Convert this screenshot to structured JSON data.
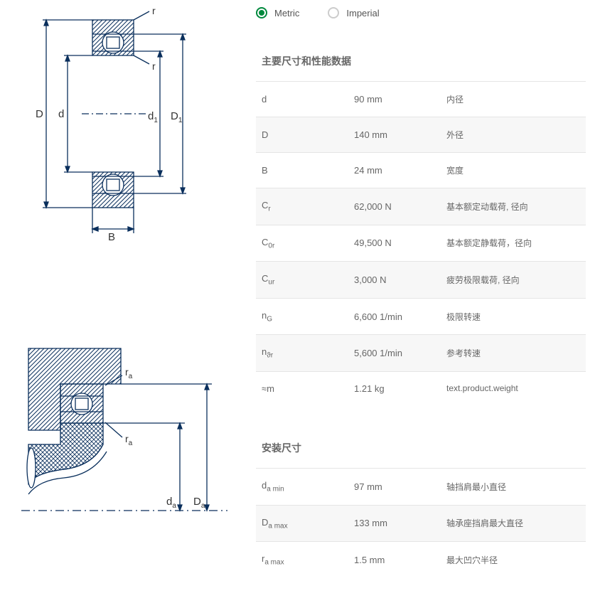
{
  "units": {
    "metric": "Metric",
    "imperial": "Imperial",
    "selected": "metric"
  },
  "section1": {
    "title": "主要尺寸和性能数据",
    "rows": [
      {
        "sym": "d",
        "sub": "",
        "val": "90 mm",
        "desc": "内径"
      },
      {
        "sym": "D",
        "sub": "",
        "val": "140 mm",
        "desc": "外径"
      },
      {
        "sym": "B",
        "sub": "",
        "val": "24 mm",
        "desc": "宽度"
      },
      {
        "sym": "C",
        "sub": "r",
        "val": "62,000 N",
        "desc": "基本额定动载荷, 径向"
      },
      {
        "sym": "C",
        "sub": "0r",
        "val": "49,500 N",
        "desc": "基本额定静载荷，径向"
      },
      {
        "sym": "C",
        "sub": "ur",
        "val": "3,000 N",
        "desc": "疲劳极限载荷, 径向"
      },
      {
        "sym": "n",
        "sub": "G",
        "val": "6,600 1/min",
        "desc": "极限转速"
      },
      {
        "sym": "n",
        "sub": "ϑr",
        "val": "5,600 1/min",
        "desc": "参考转速"
      },
      {
        "sym": "≈m",
        "sub": "",
        "val": "1.21 kg",
        "desc": "text.product.weight"
      }
    ]
  },
  "section2": {
    "title": "安装尺寸",
    "rows": [
      {
        "sym": "d",
        "sub": "a min",
        "val": "97 mm",
        "desc": "轴挡肩最小直径"
      },
      {
        "sym": "D",
        "sub": "a max",
        "val": "133 mm",
        "desc": "轴承座挡肩最大直径"
      },
      {
        "sym": "r",
        "sub": "a max",
        "val": "1.5 mm",
        "desc": "最大凹穴半径"
      }
    ]
  },
  "diagram1": {
    "labels": {
      "D": "D",
      "d": "d",
      "d1": "d",
      "d1sub": "1",
      "D1": "D",
      "D1sub": "1",
      "B": "B",
      "r_top": "r",
      "r_mid": "r"
    },
    "colors": {
      "stroke": "#0a2f5c",
      "hatch": "#0a2f5c",
      "bg": "#ffffff"
    }
  },
  "diagram2": {
    "labels": {
      "ra1": "r",
      "ra1sub": "a",
      "ra2": "r",
      "ra2sub": "a",
      "da": "d",
      "dasub": "a",
      "Da": "D",
      "Dasub": "a"
    },
    "colors": {
      "stroke": "#0a2f5c"
    }
  }
}
